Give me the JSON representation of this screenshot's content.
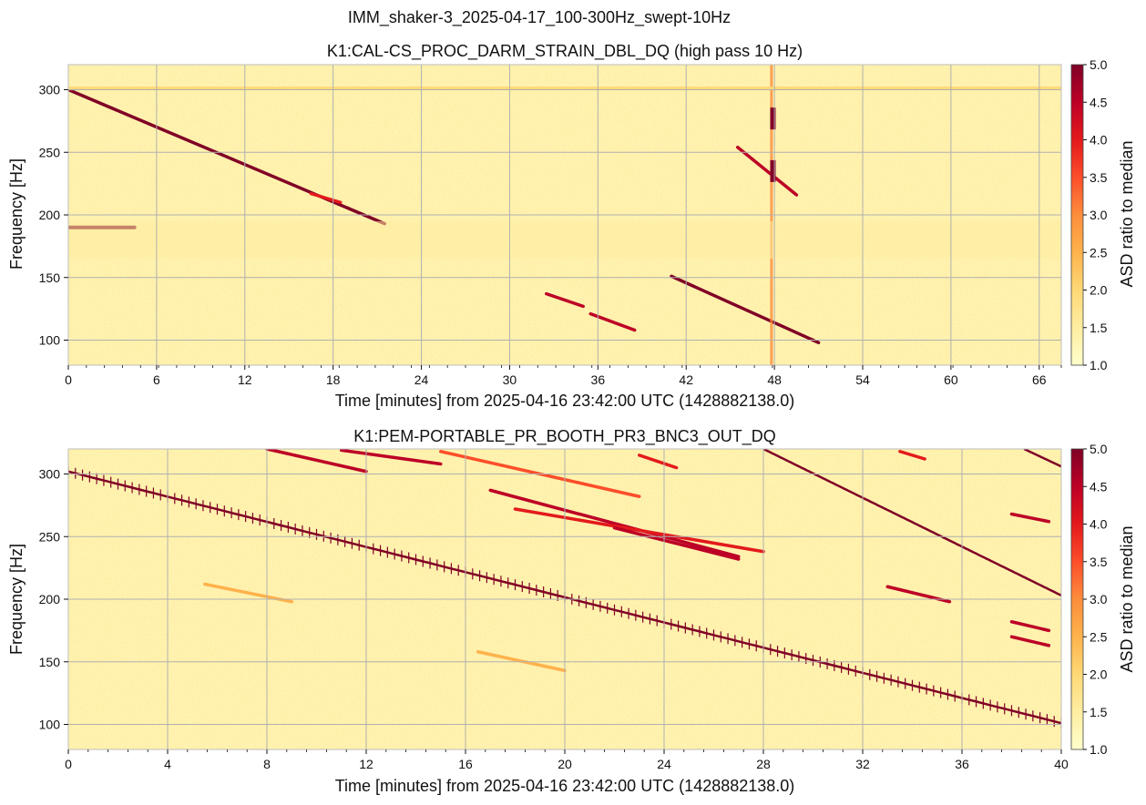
{
  "figure": {
    "suptitle": "IMM_shaker-3_2025-04-17_100-300Hz_swept-10Hz"
  },
  "chart_data": [
    {
      "type": "heatmap",
      "title": "K1:CAL-CS_PROC_DARM_STRAIN_DBL_DQ (high pass 10 Hz)",
      "xlabel": "Time [minutes] from 2025-04-16 23:42:00 UTC (1428882138.0)",
      "ylabel": "Frequency [Hz]",
      "xlim": [
        0,
        67.5
      ],
      "ylim": [
        80,
        320
      ],
      "xticks": [
        "0",
        "6",
        "12",
        "18",
        "24",
        "30",
        "36",
        "42",
        "48",
        "54",
        "60",
        "66"
      ],
      "yticks": [
        "100",
        "150",
        "200",
        "250",
        "300"
      ],
      "grid": true,
      "colorbar": {
        "label": "ASD ratio to median",
        "range": [
          1.0,
          5.0
        ],
        "ticks": [
          "1.0",
          "1.5",
          "2.0",
          "2.5",
          "3.0",
          "3.5",
          "4.0",
          "4.5",
          "5.0"
        ],
        "colormap": "YlOrRd"
      },
      "features": [
        {
          "kind": "sweep",
          "t": [
            0,
            21.5
          ],
          "f": [
            300,
            193
          ],
          "intensity": 5.0
        },
        {
          "kind": "sweep",
          "t": [
            16.5,
            18.5
          ],
          "f": [
            217,
            210
          ],
          "intensity": 4.0
        },
        {
          "kind": "line",
          "t": [
            0,
            4.5
          ],
          "f": [
            190,
            190
          ],
          "intensity": 5.0
        },
        {
          "kind": "sweep",
          "t": [
            32.5,
            35
          ],
          "f": [
            137,
            127
          ],
          "intensity": 4.5
        },
        {
          "kind": "sweep",
          "t": [
            35.5,
            38.5
          ],
          "f": [
            121,
            108
          ],
          "intensity": 4.5
        },
        {
          "kind": "sweep",
          "t": [
            41,
            51
          ],
          "f": [
            151,
            98
          ],
          "intensity": 5.0
        },
        {
          "kind": "sweep",
          "t": [
            45.5,
            49.5
          ],
          "f": [
            254,
            216
          ],
          "intensity": 4.5
        },
        {
          "kind": "vertical",
          "t": 47.8,
          "f": [
            80,
            320
          ],
          "intensity": 3.0
        },
        {
          "kind": "blob",
          "t": 47.9,
          "f": 277,
          "intensity": 5.0
        },
        {
          "kind": "blob",
          "t": 47.9,
          "f": 235,
          "intensity": 5.0
        },
        {
          "kind": "band",
          "f": [
            165,
            195
          ],
          "intensity": 1.6
        },
        {
          "kind": "line",
          "t": [
            0,
            67.5
          ],
          "f": [
            301,
            301
          ],
          "intensity": 1.8
        }
      ]
    },
    {
      "type": "heatmap",
      "title": "K1:PEM-PORTABLE_PR_BOOTH_PR3_BNC3_OUT_DQ",
      "xlabel": "Time [minutes] from 2025-04-16 23:42:00 UTC (1428882138.0)",
      "ylabel": "Frequency [Hz]",
      "xlim": [
        0,
        40
      ],
      "ylim": [
        80,
        320
      ],
      "xticks": [
        "0",
        "4",
        "8",
        "12",
        "16",
        "20",
        "24",
        "28",
        "32",
        "36",
        "40"
      ],
      "yticks": [
        "100",
        "150",
        "200",
        "250",
        "300"
      ],
      "grid": true,
      "colorbar": {
        "label": "ASD ratio to median",
        "range": [
          1.0,
          5.0
        ],
        "ticks": [
          "1.0",
          "1.5",
          "2.0",
          "2.5",
          "3.0",
          "3.5",
          "4.0",
          "4.5",
          "5.0"
        ],
        "colormap": "YlOrRd"
      },
      "features": [
        {
          "kind": "stepsweep",
          "t": [
            0,
            40
          ],
          "f": [
            302,
            101
          ],
          "intensity": 5.0
        },
        {
          "kind": "stepsweep",
          "t": [
            28,
            40
          ],
          "f": [
            320,
            203
          ],
          "intensity": 5.0
        },
        {
          "kind": "stepsweep",
          "t": [
            38.5,
            40
          ],
          "f": [
            320,
            306
          ],
          "intensity": 5.0
        },
        {
          "kind": "sweep",
          "t": [
            8,
            12
          ],
          "f": [
            320,
            302
          ],
          "intensity": 4.5
        },
        {
          "kind": "sweep",
          "t": [
            11,
            15
          ],
          "f": [
            319,
            308
          ],
          "intensity": 4.5
        },
        {
          "kind": "sweep",
          "t": [
            15,
            23
          ],
          "f": [
            318,
            282
          ],
          "intensity": 3.5
        },
        {
          "kind": "sweep",
          "t": [
            17,
            27
          ],
          "f": [
            287,
            234
          ],
          "intensity": 4.5
        },
        {
          "kind": "sweep",
          "t": [
            18,
            28
          ],
          "f": [
            272,
            238
          ],
          "intensity": 4.0
        },
        {
          "kind": "sweep",
          "t": [
            22,
            27
          ],
          "f": [
            257,
            232
          ],
          "intensity": 4.5
        },
        {
          "kind": "sweep",
          "t": [
            23,
            24.5
          ],
          "f": [
            315,
            305
          ],
          "intensity": 4.0
        },
        {
          "kind": "sweep",
          "t": [
            33.5,
            34.5
          ],
          "f": [
            318,
            312
          ],
          "intensity": 4.0
        },
        {
          "kind": "sweep",
          "t": [
            33,
            35.5
          ],
          "f": [
            210,
            198
          ],
          "intensity": 4.5
        },
        {
          "kind": "sweep",
          "t": [
            38,
            39.5
          ],
          "f": [
            268,
            262
          ],
          "intensity": 4.5
        },
        {
          "kind": "sweep",
          "t": [
            38,
            39.5
          ],
          "f": [
            182,
            175
          ],
          "intensity": 4.5
        },
        {
          "kind": "sweep",
          "t": [
            38,
            39.5
          ],
          "f": [
            170,
            163
          ],
          "intensity": 4.5
        },
        {
          "kind": "sweep",
          "t": [
            5.5,
            9
          ],
          "f": [
            212,
            198
          ],
          "intensity": 2.5
        },
        {
          "kind": "sweep",
          "t": [
            16.5,
            20
          ],
          "f": [
            158,
            143
          ],
          "intensity": 2.5
        }
      ]
    }
  ]
}
